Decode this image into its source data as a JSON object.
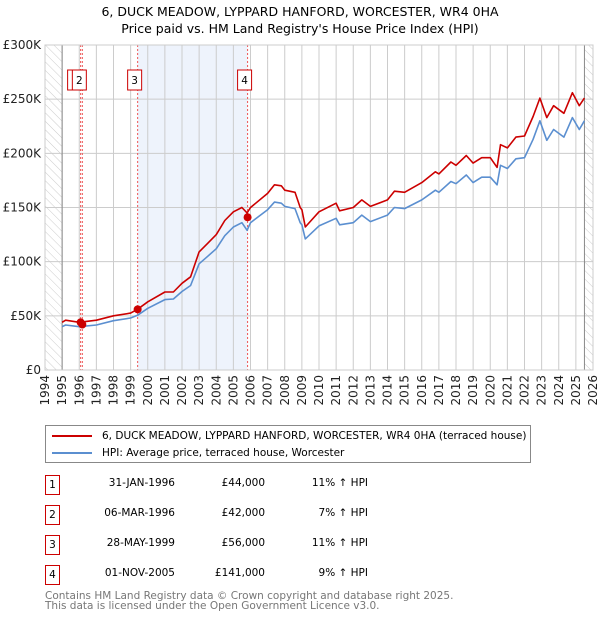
{
  "chart_data": {
    "type": "line",
    "title": "6, DUCK MEADOW, LYPPARD HANFORD, WORCESTER, WR4 0HA",
    "subtitle": "Price paid vs. HM Land Registry's House Price Index (HPI)",
    "xlim": [
      1994,
      2026
    ],
    "ylim": [
      0,
      300000
    ],
    "x_ticks": [
      "1994",
      "1995",
      "1996",
      "1997",
      "1998",
      "1999",
      "2000",
      "2001",
      "2002",
      "2003",
      "2004",
      "2005",
      "2006",
      "2007",
      "2008",
      "2009",
      "2010",
      "2011",
      "2012",
      "2013",
      "2014",
      "2015",
      "2016",
      "2017",
      "2018",
      "2019",
      "2020",
      "2021",
      "2022",
      "2023",
      "2024",
      "2025",
      "2026"
    ],
    "y_ticks": [
      {
        "v": 0,
        "label": "£0"
      },
      {
        "v": 50000,
        "label": "£50K"
      },
      {
        "v": 100000,
        "label": "£100K"
      },
      {
        "v": 150000,
        "label": "£150K"
      },
      {
        "v": 200000,
        "label": "£200K"
      },
      {
        "v": 250000,
        "label": "£250K"
      },
      {
        "v": 300000,
        "label": "£300K"
      }
    ],
    "grid": true,
    "data_range": [
      1995,
      2025.5
    ],
    "shaded_span": [
      1999.4,
      2005.83
    ],
    "series": [
      {
        "name": "6, DUCK MEADOW, LYPPARD HANFORD, WORCESTER, WR4 0HA (terraced house)",
        "color": "#cc0000",
        "x": [
          1995,
          1995.2,
          1996,
          1997,
          1998,
          1999,
          1999.4,
          2000,
          2001,
          2001.5,
          2002,
          2002.5,
          2003,
          2003.5,
          2004,
          2004.5,
          2005,
          2005.5,
          2005.8,
          2006,
          2007,
          2007.4,
          2007.8,
          2008,
          2008.6,
          2008.9,
          2009,
          2009.2,
          2010,
          2011,
          2011.2,
          2012,
          2012.5,
          2013,
          2014,
          2014.4,
          2015,
          2016,
          2016.8,
          2017,
          2017.7,
          2018,
          2018.6,
          2019,
          2019.5,
          2020,
          2020.4,
          2020.6,
          2021,
          2021.5,
          2022,
          2022.5,
          2022.9,
          2023.3,
          2023.7,
          2024.3,
          2024.8,
          2025.2,
          2025.5
        ],
        "values": [
          44000,
          46000,
          44000,
          46000,
          50000,
          52500,
          56000,
          63000,
          72000,
          72000,
          80000,
          86000,
          109000,
          117000,
          125000,
          138000,
          146000,
          150000,
          145000,
          150000,
          163000,
          171000,
          170000,
          166000,
          164000,
          150000,
          148000,
          132000,
          146000,
          154000,
          147000,
          150000,
          157000,
          151000,
          157000,
          165000,
          164000,
          173000,
          183000,
          181000,
          192000,
          189000,
          198000,
          191000,
          196000,
          196000,
          187000,
          208000,
          205000,
          215000,
          216000,
          234000,
          251000,
          233000,
          244000,
          237000,
          256000,
          244000,
          251000
        ]
      },
      {
        "name": "HPI: Average price, terraced house, Worcester",
        "color": "#5b8fd0",
        "x": [
          1995,
          1995.2,
          1996,
          1997,
          1998,
          1999,
          1999.4,
          2000,
          2001,
          2001.5,
          2002,
          2002.5,
          2003,
          2003.5,
          2004,
          2004.5,
          2005,
          2005.5,
          2005.8,
          2006,
          2007,
          2007.4,
          2007.8,
          2008,
          2008.6,
          2008.9,
          2009,
          2009.2,
          2010,
          2011,
          2011.2,
          2012,
          2012.5,
          2013,
          2014,
          2014.4,
          2015,
          2016,
          2016.8,
          2017,
          2017.7,
          2018,
          2018.6,
          2019,
          2019.5,
          2020,
          2020.4,
          2020.6,
          2021,
          2021.5,
          2022,
          2022.5,
          2022.9,
          2023.3,
          2023.7,
          2024.3,
          2024.8,
          2025.2,
          2025.5
        ],
        "values": [
          40000,
          41500,
          40000,
          41500,
          45500,
          48000,
          50500,
          57000,
          65000,
          65500,
          72500,
          78000,
          98000,
          105000,
          112000,
          124000,
          132000,
          136000,
          129000,
          136000,
          148000,
          155000,
          154000,
          151000,
          149000,
          136000,
          134000,
          121000,
          133000,
          140000,
          134000,
          136000,
          143000,
          137000,
          143000,
          150000,
          149000,
          157000,
          166000,
          164000,
          174000,
          172000,
          180000,
          173000,
          178000,
          178000,
          171000,
          189000,
          186000,
          195000,
          196000,
          213000,
          230000,
          212000,
          222000,
          215000,
          233000,
          222000,
          230000
        ]
      }
    ],
    "sales": [
      {
        "id": "1",
        "date": "31-JAN-1996",
        "x": 1996.08,
        "price": 44000,
        "price_label": "£44,000",
        "hpi": "11% ↑ HPI"
      },
      {
        "id": "2",
        "date": "06-MAR-1996",
        "x": 1996.18,
        "price": 42000,
        "price_label": "£42,000",
        "hpi": "7% ↑ HPI"
      },
      {
        "id": "3",
        "date": "28-MAY-1999",
        "x": 1999.41,
        "price": 56000,
        "price_label": "£56,000",
        "hpi": "11% ↑ HPI"
      },
      {
        "id": "4",
        "date": "01-NOV-2005",
        "x": 2005.83,
        "price": 141000,
        "price_label": "£141,000",
        "hpi": "9% ↑ HPI"
      }
    ]
  },
  "footer": {
    "line1": "Contains HM Land Registry data © Crown copyright and database right 2025.",
    "line2": "This data is licensed under the Open Government Licence v3.0."
  }
}
